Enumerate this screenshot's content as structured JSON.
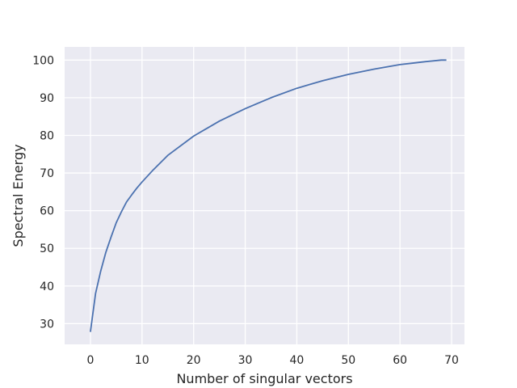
{
  "chart_data": {
    "type": "line",
    "title": "",
    "xlabel": "Number of singular vectors",
    "ylabel": "Spectral Energy",
    "xlim": [
      -5.0,
      72.5
    ],
    "ylim": [
      24.5,
      103.5
    ],
    "xticks": [
      0,
      10,
      20,
      30,
      40,
      50,
      60,
      70
    ],
    "yticks": [
      30,
      40,
      50,
      60,
      70,
      80,
      90,
      100
    ],
    "grid": true,
    "legend": "none",
    "colors": {
      "background": "#eaeaf2",
      "grid": "#ffffff",
      "line": "#4c72b0",
      "text": "#262626"
    },
    "series": [
      {
        "x": [
          0,
          1,
          2,
          3,
          4,
          5,
          6,
          7,
          8,
          9,
          10,
          12,
          15,
          20,
          25,
          30,
          35,
          40,
          45,
          50,
          55,
          60,
          65,
          68,
          69
        ],
        "values": [
          27.8,
          38.0,
          44.0,
          49.0,
          53.0,
          56.8,
          59.7,
          62.3,
          64.2,
          66.0,
          67.6,
          70.6,
          74.7,
          79.8,
          83.8,
          87.1,
          90.0,
          92.5,
          94.5,
          96.2,
          97.6,
          98.8,
          99.6,
          100.0,
          100.0
        ]
      }
    ]
  }
}
